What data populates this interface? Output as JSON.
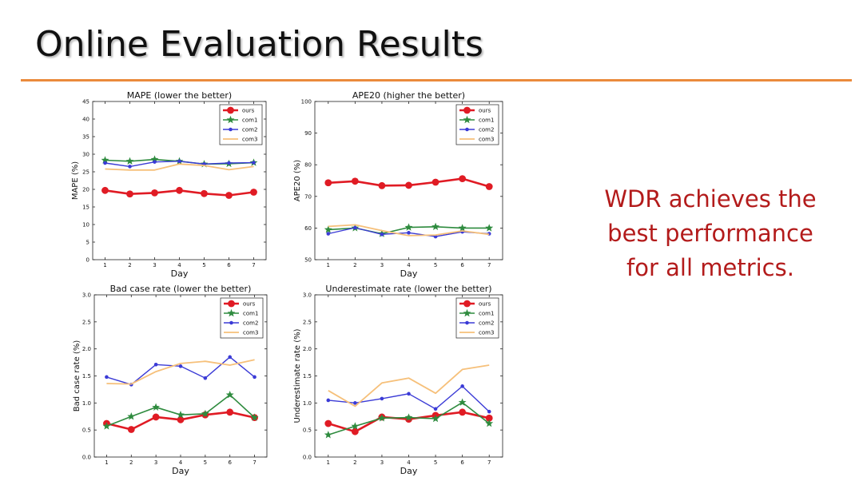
{
  "slide": {
    "title": "Online Evaluation Results",
    "conclusion_lines": [
      "WDR achieves the",
      "best performance",
      "for all metrics."
    ]
  },
  "colors": {
    "ours": "#e01b24",
    "com1": "#2e8b3e",
    "com2": "#3b3bd6",
    "com3": "#f6c07a",
    "rule": "#ea8a3c",
    "text_red": "#b31b1b"
  },
  "chart_data": [
    {
      "type": "line",
      "title": "MAPE (lower the better)",
      "xlabel": "Day",
      "ylabel": "MAPE (%)",
      "x": [
        1,
        2,
        3,
        4,
        5,
        6,
        7
      ],
      "xlim": [
        0.5,
        7.5
      ],
      "ylim": [
        0,
        45
      ],
      "yticks": [
        0,
        5,
        10,
        15,
        20,
        25,
        30,
        35,
        40,
        45
      ],
      "legend": "top-right",
      "series": [
        {
          "name": "ours",
          "marker": "circle",
          "values": [
            19.7,
            18.7,
            19.0,
            19.7,
            18.8,
            18.3,
            19.2
          ]
        },
        {
          "name": "com1",
          "marker": "star",
          "values": [
            28.3,
            28.0,
            28.5,
            28.0,
            27.2,
            27.3,
            27.6
          ]
        },
        {
          "name": "com2",
          "marker": "dot",
          "values": [
            27.5,
            26.5,
            27.8,
            28.0,
            27.2,
            27.5,
            27.6
          ]
        },
        {
          "name": "com3",
          "marker": "none",
          "values": [
            25.8,
            25.5,
            25.5,
            27.2,
            26.8,
            25.6,
            26.5
          ]
        }
      ]
    },
    {
      "type": "line",
      "title": "APE20 (higher the better)",
      "xlabel": "Day",
      "ylabel": "APE20 (%)",
      "x": [
        1,
        2,
        3,
        4,
        5,
        6,
        7
      ],
      "xlim": [
        0.5,
        7.5
      ],
      "ylim": [
        50,
        100
      ],
      "yticks": [
        50,
        60,
        70,
        80,
        90,
        100
      ],
      "legend": "top-right",
      "series": [
        {
          "name": "ours",
          "marker": "circle",
          "values": [
            74.3,
            74.8,
            73.4,
            73.5,
            74.5,
            75.6,
            73.1
          ]
        },
        {
          "name": "com1",
          "marker": "star",
          "values": [
            59.5,
            60.0,
            58.2,
            60.2,
            60.4,
            60.0,
            60.0
          ]
        },
        {
          "name": "com2",
          "marker": "dot",
          "values": [
            58.2,
            60.1,
            58.0,
            58.5,
            57.3,
            58.8,
            58.2
          ]
        },
        {
          "name": "com3",
          "marker": "none",
          "values": [
            60.5,
            61.0,
            59.2,
            57.6,
            57.8,
            59.1,
            58.0
          ]
        }
      ]
    },
    {
      "type": "line",
      "title": "Bad case rate (lower the better)",
      "xlabel": "Day",
      "ylabel": "Bad case rate (%)",
      "x": [
        1,
        2,
        3,
        4,
        5,
        6,
        7
      ],
      "xlim": [
        0.5,
        7.5
      ],
      "ylim": [
        0.0,
        3.0
      ],
      "yticks": [
        0.0,
        0.5,
        1.0,
        1.5,
        2.0,
        2.5,
        3.0
      ],
      "legend": "top-right",
      "series": [
        {
          "name": "ours",
          "marker": "circle",
          "values": [
            0.62,
            0.51,
            0.74,
            0.69,
            0.78,
            0.83,
            0.73
          ]
        },
        {
          "name": "com1",
          "marker": "star",
          "values": [
            0.57,
            0.75,
            0.92,
            0.78,
            0.8,
            1.15,
            0.73
          ]
        },
        {
          "name": "com2",
          "marker": "dot",
          "values": [
            1.48,
            1.34,
            1.71,
            1.68,
            1.46,
            1.85,
            1.48
          ]
        },
        {
          "name": "com3",
          "marker": "none",
          "values": [
            1.36,
            1.35,
            1.58,
            1.73,
            1.77,
            1.7,
            1.8
          ]
        }
      ]
    },
    {
      "type": "line",
      "title": "Underestimate rate (lower the better)",
      "xlabel": "Day",
      "ylabel": "Underestimate rate (%)",
      "x": [
        1,
        2,
        3,
        4,
        5,
        6,
        7
      ],
      "xlim": [
        0.5,
        7.5
      ],
      "ylim": [
        0.0,
        3.0
      ],
      "yticks": [
        0.0,
        0.5,
        1.0,
        1.5,
        2.0,
        2.5,
        3.0
      ],
      "legend": "top-right",
      "series": [
        {
          "name": "ours",
          "marker": "circle",
          "values": [
            0.62,
            0.47,
            0.74,
            0.7,
            0.77,
            0.83,
            0.72
          ]
        },
        {
          "name": "com1",
          "marker": "star",
          "values": [
            0.41,
            0.57,
            0.72,
            0.73,
            0.71,
            1.01,
            0.62
          ]
        },
        {
          "name": "com2",
          "marker": "dot",
          "values": [
            1.05,
            1.0,
            1.08,
            1.17,
            0.89,
            1.31,
            0.84
          ]
        },
        {
          "name": "com3",
          "marker": "none",
          "values": [
            1.23,
            0.94,
            1.37,
            1.46,
            1.18,
            1.62,
            1.7
          ]
        }
      ]
    }
  ]
}
